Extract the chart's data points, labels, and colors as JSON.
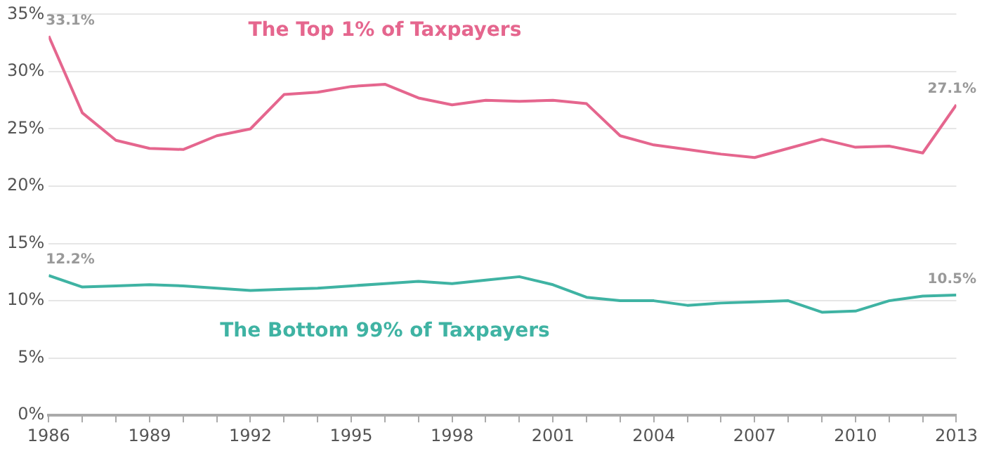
{
  "chart_data": {
    "type": "line",
    "x": [
      1986,
      1987,
      1988,
      1989,
      1990,
      1991,
      1992,
      1993,
      1994,
      1995,
      1996,
      1997,
      1998,
      1999,
      2000,
      2001,
      2002,
      2003,
      2004,
      2005,
      2006,
      2007,
      2008,
      2009,
      2010,
      2011,
      2012,
      2013
    ],
    "series": [
      {
        "name": "The Top 1% of Taxpayers",
        "color": "#e5668e",
        "values": [
          33.1,
          26.4,
          24.0,
          23.3,
          23.2,
          24.4,
          25.0,
          28.0,
          28.2,
          28.7,
          28.9,
          27.7,
          27.1,
          27.5,
          27.4,
          27.5,
          27.2,
          24.4,
          23.6,
          23.2,
          22.8,
          22.5,
          23.3,
          24.1,
          23.4,
          23.5,
          22.9,
          27.1
        ],
        "value_labels": [
          "33.1%",
          null,
          null,
          null,
          null,
          null,
          null,
          null,
          null,
          null,
          null,
          null,
          null,
          null,
          null,
          null,
          null,
          null,
          null,
          null,
          null,
          null,
          null,
          null,
          null,
          null,
          null,
          "27.1%"
        ]
      },
      {
        "name": "The Bottom 99% of Taxpayers",
        "color": "#3fb3a3",
        "values": [
          12.2,
          11.2,
          11.3,
          11.4,
          11.3,
          11.1,
          10.9,
          11.0,
          11.1,
          11.3,
          11.5,
          11.7,
          11.5,
          11.8,
          12.1,
          11.4,
          10.3,
          10.0,
          10.0,
          9.6,
          9.8,
          9.9,
          10.0,
          9.0,
          9.1,
          10.0,
          10.4,
          10.5
        ],
        "value_labels": [
          "12.2%",
          null,
          null,
          null,
          null,
          null,
          null,
          null,
          null,
          null,
          null,
          null,
          null,
          null,
          null,
          null,
          null,
          null,
          null,
          null,
          null,
          null,
          null,
          null,
          null,
          null,
          null,
          "10.5%"
        ]
      }
    ],
    "xlim": [
      1986,
      2013
    ],
    "xticks": [
      1986,
      {
        "value": 1987,
        "label": null
      },
      {
        "value": 1988,
        "label": null
      },
      1989,
      {
        "value": 1990,
        "label": null
      },
      {
        "value": 1991,
        "label": null
      },
      1992,
      {
        "value": 1993,
        "label": null
      },
      {
        "value": 1994,
        "label": null
      },
      1995,
      {
        "value": 1996,
        "label": null
      },
      {
        "value": 1997,
        "label": null
      },
      1998,
      {
        "value": 1999,
        "label": null
      },
      {
        "value": 2000,
        "label": null
      },
      2001,
      {
        "value": 2002,
        "label": null
      },
      {
        "value": 2003,
        "label": null
      },
      2004,
      {
        "value": 2005,
        "label": null
      },
      {
        "value": 2006,
        "label": null
      },
      2007,
      {
        "value": 2008,
        "label": null
      },
      {
        "value": 2009,
        "label": null
      },
      2010,
      {
        "value": 2011,
        "label": null
      },
      {
        "value": 2012,
        "label": null
      },
      2013
    ],
    "ylim": [
      0,
      35
    ],
    "yticks": [
      {
        "value": 0,
        "label": "0%"
      },
      {
        "value": 5,
        "label": "5%"
      },
      {
        "value": 10,
        "label": "10%"
      },
      {
        "value": 15,
        "label": "15%"
      },
      {
        "value": 20,
        "label": "20%"
      },
      {
        "value": 25,
        "label": "25%"
      },
      {
        "value": 30,
        "label": "30%"
      },
      {
        "value": 35,
        "label": "35%"
      }
    ],
    "grid": "y",
    "marker": "none",
    "line_style": "solid",
    "legend": false
  }
}
